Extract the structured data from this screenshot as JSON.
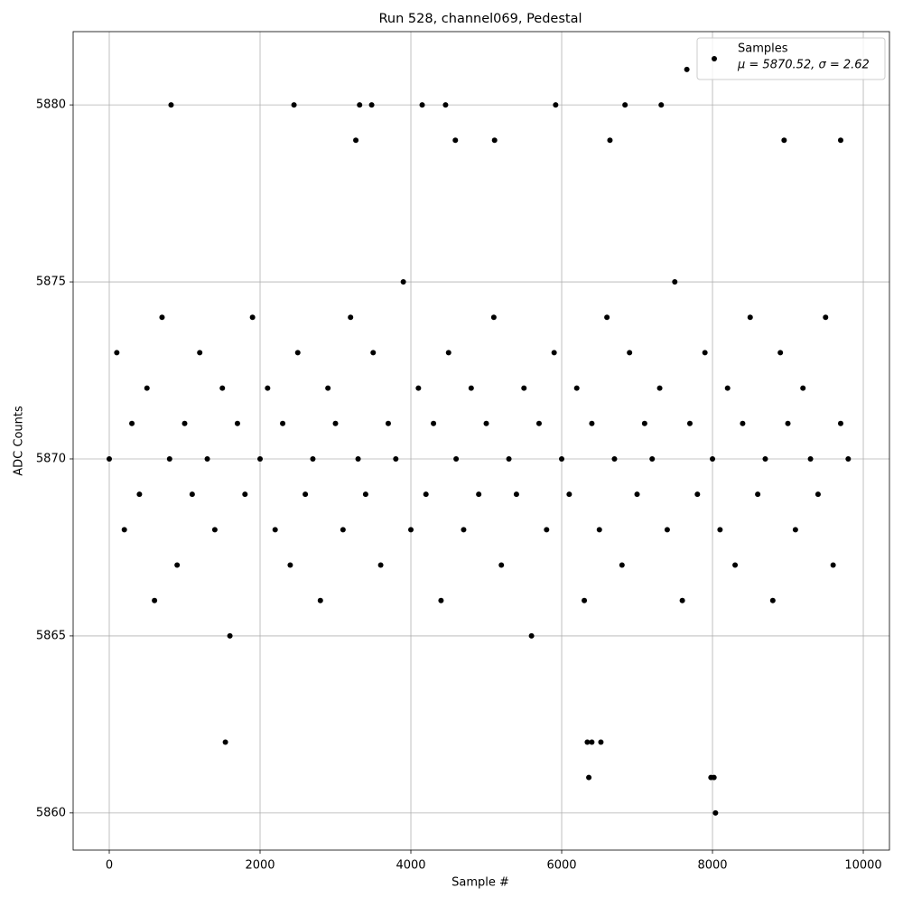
{
  "chart_data": {
    "type": "scatter",
    "title": "Run 528, channel069, Pedestal",
    "x_label": "Sample #",
    "y_label": "ADC Counts",
    "xlim": [
      -479,
      10347
    ],
    "ylim": [
      5858.95,
      5882.07
    ],
    "xticks": [
      0,
      2000,
      4000,
      6000,
      8000,
      10000
    ],
    "yticks": [
      5860,
      5865,
      5870,
      5875,
      5880
    ],
    "grid": true,
    "legend_position": "upper right",
    "series": [
      {
        "name": "Samples",
        "note": "μ = 5870.52, σ = 2.62",
        "color": "#000000",
        "x": [
          0,
          100,
          200,
          300,
          400,
          500,
          600,
          700,
          800,
          900,
          1000,
          1100,
          1200,
          1300,
          1400,
          1500,
          1600,
          1700,
          1800,
          1900,
          2000,
          2100,
          2200,
          2300,
          2400,
          2500,
          2600,
          2700,
          2800,
          2900,
          3000,
          3100,
          3200,
          3300,
          3400,
          3500,
          3600,
          3700,
          3800,
          3900,
          4000,
          4100,
          4200,
          4300,
          4400,
          4500,
          4600,
          4700,
          4800,
          4900,
          5000,
          5100,
          5200,
          5300,
          5400,
          5500,
          5600,
          5700,
          5800,
          5900,
          6000,
          6100,
          6200,
          6300,
          6400,
          6500,
          6600,
          6700,
          6800,
          6900,
          7000,
          7100,
          7200,
          7300,
          7400,
          7500,
          7600,
          7700,
          7800,
          7900,
          8000,
          8100,
          8200,
          8300,
          8400,
          8500,
          8600,
          8700,
          8800,
          8900,
          9000,
          9100,
          9200,
          9300,
          9400,
          9500,
          9600,
          9700,
          9800,
          820,
          2450,
          3320,
          3480,
          4150,
          4460,
          5920,
          6840,
          7320,
          7660,
          1540,
          6360,
          6340,
          6400,
          6520,
          7980,
          8020,
          8040,
          3270,
          4590,
          5110,
          6640,
          8950,
          9700
        ],
        "values": [
          5870,
          5873,
          5868,
          5871,
          5869,
          5872,
          5866,
          5874,
          5870,
          5867,
          5871,
          5869,
          5873,
          5870,
          5868,
          5872,
          5865,
          5871,
          5869,
          5874,
          5870,
          5872,
          5868,
          5871,
          5867,
          5873,
          5869,
          5870,
          5866,
          5872,
          5871,
          5868,
          5874,
          5870,
          5869,
          5873,
          5867,
          5871,
          5870,
          5875,
          5868,
          5872,
          5869,
          5871,
          5866,
          5873,
          5870,
          5868,
          5872,
          5869,
          5871,
          5874,
          5867,
          5870,
          5869,
          5872,
          5865,
          5871,
          5868,
          5873,
          5870,
          5869,
          5872,
          5866,
          5871,
          5868,
          5874,
          5870,
          5867,
          5873,
          5869,
          5871,
          5870,
          5872,
          5868,
          5875,
          5866,
          5871,
          5869,
          5873,
          5870,
          5868,
          5872,
          5867,
          5871,
          5874,
          5869,
          5870,
          5866,
          5873,
          5871,
          5868,
          5872,
          5870,
          5869,
          5874,
          5867,
          5871,
          5870,
          5880,
          5880,
          5880,
          5880,
          5880,
          5880,
          5880,
          5880,
          5880,
          5881,
          5862,
          5861,
          5862,
          5862,
          5862,
          5861,
          5861,
          5860,
          5879,
          5879,
          5879,
          5879,
          5879,
          5879
        ]
      }
    ]
  }
}
